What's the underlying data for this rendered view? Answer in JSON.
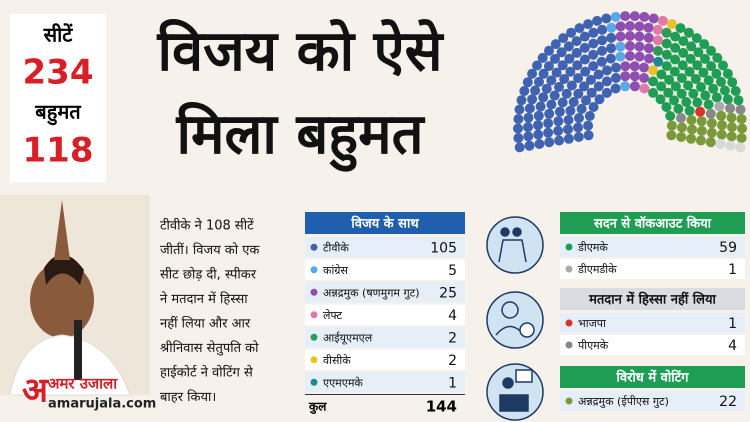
{
  "seats": {
    "label": "सीटें",
    "value": 234
  },
  "majority": {
    "label": "बहुमत",
    "value": 118
  },
  "headline": [
    "विजय को ऐसे",
    "मिला बहुमत"
  ],
  "story": [
    "टीवीके ने 108 सीटें",
    "जीतीं। विजय को एक",
    "सीट छोड़ दी, स्पीकर",
    "ने मतदान में हिस्सा",
    "नहीं लिया और आर",
    "श्रीनिवास सेतुपति को",
    "हाईकोर्ट ने वोटिंग से",
    "बाहर किया।"
  ],
  "brand": {
    "logo": "अ",
    "name": "अमर उजाला",
    "site": "amarujala.com"
  },
  "with_vijay": {
    "title": "विजय के साथ",
    "rows": [
      {
        "name": "टीवीके",
        "value": 105,
        "color": "#3f63b0"
      },
      {
        "name": "कांग्रेस",
        "value": 5,
        "color": "#5aa9e6"
      },
      {
        "name": "अन्नद्रमुक (षणमुगम गुट)",
        "value": 25,
        "color": "#8e4fb0"
      },
      {
        "name": "लेफ्ट",
        "value": 4,
        "color": "#e07aa8"
      },
      {
        "name": "आईयूएमएल",
        "value": 2,
        "color": "#2e9b55"
      },
      {
        "name": "वीसीके",
        "value": 2,
        "color": "#e8c22a"
      },
      {
        "name": "एएमएमके",
        "value": 1,
        "color": "#1b8a8a"
      }
    ],
    "total": {
      "name": "कुल",
      "value": 144
    }
  },
  "walkout": {
    "title": "सदन से वॉकआउट किया",
    "rows": [
      {
        "name": "डीएमके",
        "value": 59,
        "color": "#1f9d55"
      },
      {
        "name": "डीएमडीके",
        "value": 1,
        "color": "#aaaaaa"
      }
    ]
  },
  "abstained": {
    "title": "मतदान में हिस्सा नहीं लिया",
    "rows": [
      {
        "name": "भाजपा",
        "value": 1,
        "color": "#d9342b"
      },
      {
        "name": "पीएमके",
        "value": 4,
        "color": "#888888"
      }
    ]
  },
  "against": {
    "title": "विरोध में वोटिंग",
    "rows": [
      {
        "name": "अन्नद्रमुक (ईपीएस गुट)",
        "value": 22,
        "color": "#7a9a3a"
      }
    ]
  }
}
